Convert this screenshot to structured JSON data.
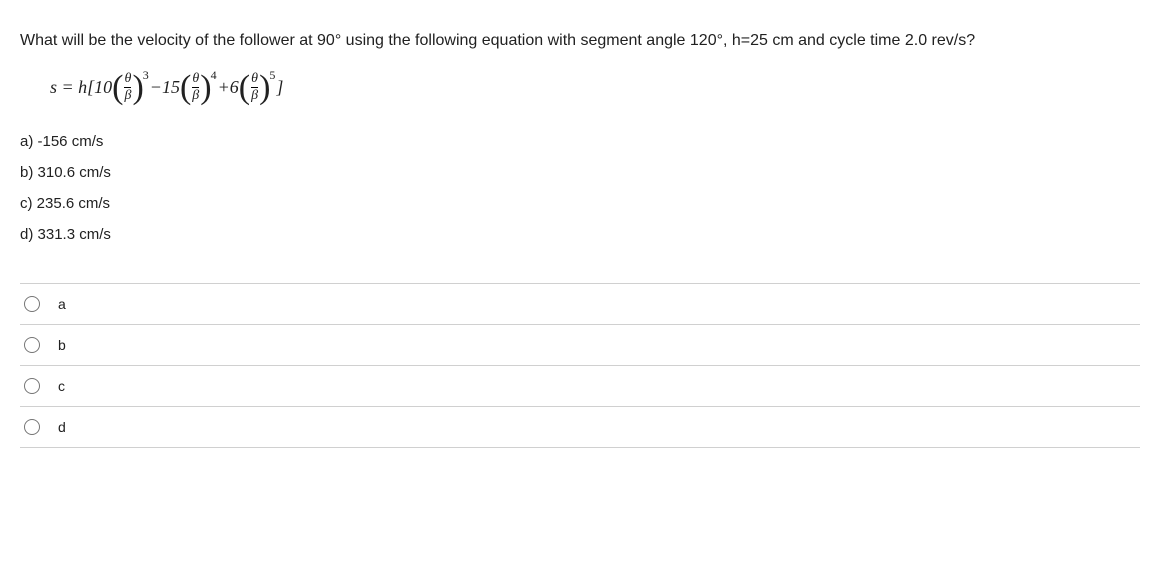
{
  "question": "What will be the velocity of the follower at 90° using the following equation with segment angle 120°, h=25 cm and cycle time 2.0 rev/s?",
  "equation": {
    "lhs": "s = h[",
    "coef1": "10",
    "frac_num": "θ",
    "frac_den": "β",
    "exp1": "3",
    "op1": " − ",
    "coef2": "15",
    "exp2": "4",
    "op2": " + ",
    "coef3": "6",
    "exp3": "5",
    "rhs": " ]"
  },
  "answers": {
    "a": "a) -156 cm/s",
    "b": "b) 310.6 cm/s",
    "c": "c) 235.6 cm/s",
    "d": "d) 331.3 cm/s"
  },
  "options": {
    "a": "a",
    "b": "b",
    "c": "c",
    "d": "d"
  },
  "colors": {
    "text": "#212121",
    "border": "#d0d0d0",
    "background": "#ffffff"
  }
}
